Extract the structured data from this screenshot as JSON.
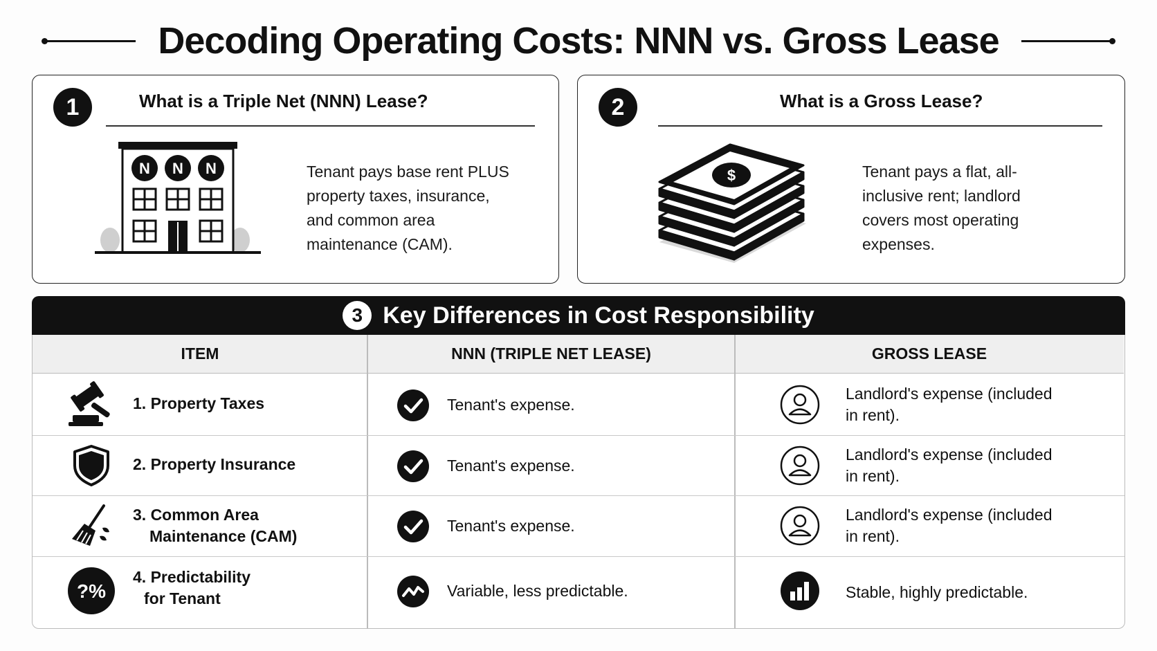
{
  "title": "Decoding Operating Costs: NNN vs. Gross Lease",
  "cards": [
    {
      "number": "1",
      "title": "What is a Triple Net (NNN) Lease?",
      "description": "Tenant pays base rent PLUS property taxes, insurance, and common area maintenance (CAM).",
      "illustration": "building-icon",
      "building_badges": [
        "N",
        "N",
        "N"
      ]
    },
    {
      "number": "2",
      "title": "What is a Gross Lease?",
      "description": "Tenant pays a flat, all-inclusive rent; landlord covers most operating expenses.",
      "illustration": "money-stack-icon",
      "money_symbol": "$"
    }
  ],
  "differences": {
    "number": "3",
    "title": "Key Differences in Cost Responsibility",
    "columns": [
      "ITEM",
      "NNN (TRIPLE NET LEASE)",
      "GROSS LEASE"
    ],
    "rows": [
      {
        "item_line1": "1. Property Taxes",
        "item_line2": "",
        "item_icon": "gavel-icon",
        "nnn": "Tenant's expense.",
        "nnn_icon": "check-circle-icon",
        "gross": "Landlord's expense (included in rent).",
        "gross_icon": "person-circle-icon"
      },
      {
        "item_line1": "2. Property Insurance",
        "item_line2": "",
        "item_icon": "shield-icon",
        "nnn": "Tenant's expense.",
        "nnn_icon": "check-circle-icon",
        "gross": "Landlord's expense (included in rent).",
        "gross_icon": "person-circle-icon"
      },
      {
        "item_line1": "3. Common Area",
        "item_line2": "Maintenance (CAM)",
        "item_icon": "broom-icon",
        "nnn": "Tenant's expense.",
        "nnn_icon": "check-circle-icon",
        "gross": "Landlord's expense (included in rent).",
        "gross_icon": "person-circle-icon"
      },
      {
        "item_line1": "4. Predictability",
        "item_line2": "for Tenant",
        "item_icon": "question-percent-icon",
        "item_icon_text": "?%",
        "nnn": "Variable, less predictable.",
        "nnn_icon": "trend-line-icon",
        "gross": "Stable, highly predictable.",
        "gross_icon": "bar-chart-icon"
      }
    ]
  },
  "colors": {
    "ink": "#111111",
    "header_bg": "#111111",
    "col_head_bg": "#efefef",
    "border": "#bbbbbb"
  }
}
